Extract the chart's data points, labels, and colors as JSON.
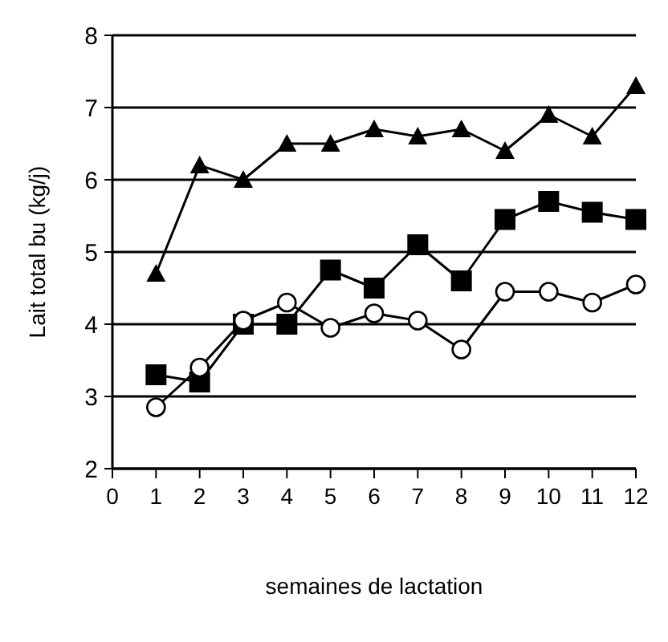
{
  "chart_data": {
    "type": "line",
    "xlabel": "semaines de lactation",
    "ylabel": "Lait total bu (kg/j)",
    "x": [
      1,
      2,
      3,
      4,
      5,
      6,
      7,
      8,
      9,
      10,
      11,
      12
    ],
    "xlim": [
      0,
      12
    ],
    "xticks": [
      0,
      1,
      2,
      3,
      4,
      5,
      6,
      7,
      8,
      9,
      10,
      11,
      12
    ],
    "ylim": [
      2,
      8
    ],
    "yticks": [
      2,
      3,
      4,
      5,
      6,
      7,
      8
    ],
    "grid": "y",
    "series": [
      {
        "color": "#000000",
        "marker": "triangle",
        "values": [
          4.7,
          6.2,
          6.0,
          6.5,
          6.5,
          6.7,
          6.6,
          6.7,
          6.4,
          6.9,
          6.6,
          7.3
        ]
      },
      {
        "color": "#000000",
        "marker": "square",
        "values": [
          3.3,
          3.2,
          4.0,
          4.0,
          4.75,
          4.5,
          5.1,
          4.6,
          5.45,
          5.7,
          5.55,
          5.45
        ]
      },
      {
        "color": "#000000",
        "marker": "circle",
        "values": [
          2.85,
          3.4,
          4.05,
          4.3,
          3.95,
          4.15,
          4.05,
          3.65,
          4.45,
          4.45,
          4.3,
          4.55
        ]
      }
    ]
  }
}
